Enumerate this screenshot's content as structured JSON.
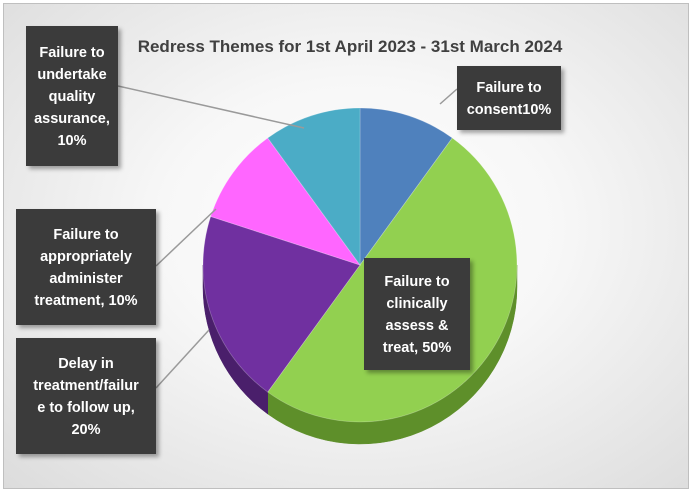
{
  "chart_data": {
    "type": "pie",
    "title": "Redress Themes for 1st April 2023 - 31st March 2024",
    "slices": [
      {
        "label": [
          "Failure to",
          "consent10%"
        ],
        "value": 10,
        "color": "#4F81BD",
        "side": "#3B6190"
      },
      {
        "label": [
          "Failure to",
          "clinically",
          "assess &",
          "treat, 50%"
        ],
        "value": 50,
        "color": "#92D050",
        "side": "#5E8F2A"
      },
      {
        "label": [
          "Delay in",
          "treatment/failur",
          "e to follow up,",
          "20%"
        ],
        "value": 20,
        "color": "#7030A0",
        "side": "#4A1F6B"
      },
      {
        "label": [
          "Failure to",
          "appropriately",
          "administer",
          "treatment, 10%"
        ],
        "value": 10,
        "color": "#FF66FF",
        "side": "#B040B0"
      },
      {
        "label": [
          "Failure to",
          "undertake",
          "quality",
          "assurance,",
          "10%"
        ],
        "value": 10,
        "color": "#4BACC6",
        "side": "#2F7E93"
      }
    ],
    "grid": false,
    "legend": "none"
  }
}
